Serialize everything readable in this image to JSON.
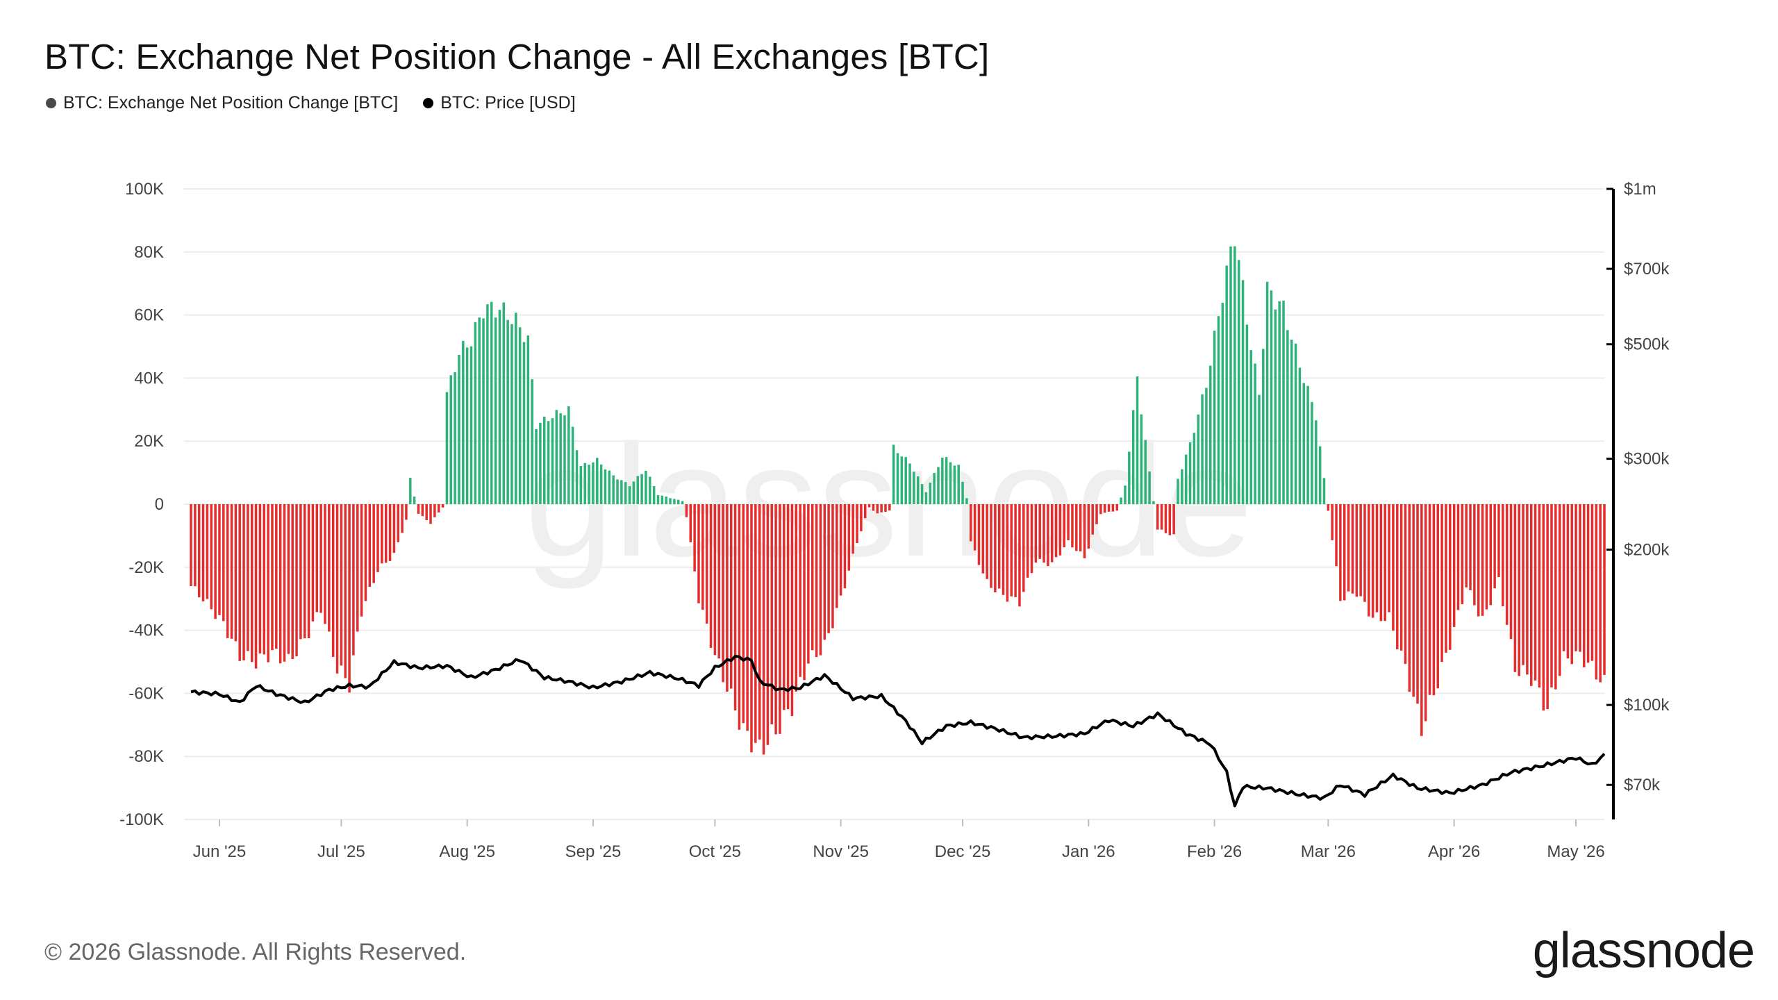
{
  "header": {
    "title": "BTC: Exchange Net Position Change - All Exchanges [BTC]"
  },
  "legend": [
    {
      "label": "BTC: Exchange Net Position Change [BTC]",
      "color": "#4a4a4a"
    },
    {
      "label": "BTC: Price [USD]",
      "color": "#000000"
    }
  ],
  "footer": {
    "copyright": "© 2026 Glassnode. All Rights Reserved.",
    "brand": "glassnode",
    "watermark": "glassnode"
  },
  "chart_data": {
    "type": "bar",
    "title": "BTC: Exchange Net Position Change - All Exchanges [BTC]",
    "colors": {
      "positive": "#2db37a",
      "negative": "#e52c2c",
      "price": "#000000",
      "grid": "#ececec"
    },
    "x_ticks": [
      "Jun '25",
      "Jul '25",
      "Aug '25",
      "Sep '25",
      "Oct '25",
      "Nov '25",
      "Dec '25",
      "Jan '26",
      "Feb '26",
      "Mar '26",
      "Apr '26",
      "May '26"
    ],
    "x_range": [
      "2025-05-25",
      "2026-05-08"
    ],
    "y_left": {
      "ylim": [
        -100000,
        100000
      ],
      "ticks": [
        100000,
        80000,
        60000,
        40000,
        20000,
        0,
        -20000,
        -40000,
        -60000,
        -80000,
        -100000
      ],
      "tick_labels": [
        "100K",
        "80K",
        "60K",
        "40K",
        "20K",
        "0",
        "-20K",
        "-40K",
        "-60K",
        "-80K",
        "-100K"
      ]
    },
    "y_right": {
      "scale": "log",
      "range": [
        60000,
        1000000
      ],
      "ticks": [
        1000000,
        700000,
        500000,
        300000,
        200000,
        100000,
        70000
      ],
      "tick_labels": [
        "$1m",
        "$700k",
        "$500k",
        "$300k",
        "$200k",
        "$100k",
        "$70k"
      ]
    },
    "series": [
      {
        "name": "BTC: Exchange Net Position Change [BTC]",
        "kind": "bar",
        "keyframes": [
          [
            "2025-05-25",
            -26000
          ],
          [
            "2025-05-28",
            -30000
          ],
          [
            "2025-06-02",
            -38000
          ],
          [
            "2025-06-06",
            -48000
          ],
          [
            "2025-06-10",
            -50000
          ],
          [
            "2025-06-14",
            -47000
          ],
          [
            "2025-06-18",
            -50000
          ],
          [
            "2025-06-22",
            -43000
          ],
          [
            "2025-06-26",
            -33000
          ],
          [
            "2025-06-30",
            -52000
          ],
          [
            "2025-07-03",
            -57000
          ],
          [
            "2025-07-06",
            -34000
          ],
          [
            "2025-07-10",
            -21000
          ],
          [
            "2025-07-14",
            -16000
          ],
          [
            "2025-07-17",
            -5000
          ],
          [
            "2025-07-18",
            8000
          ],
          [
            "2025-07-20",
            -3000
          ],
          [
            "2025-07-23",
            -6000
          ],
          [
            "2025-07-26",
            -1000
          ],
          [
            "2025-07-27",
            35000
          ],
          [
            "2025-07-30",
            48000
          ],
          [
            "2025-08-02",
            52000
          ],
          [
            "2025-08-05",
            62000
          ],
          [
            "2025-08-09",
            62000
          ],
          [
            "2025-08-13",
            58000
          ],
          [
            "2025-08-16",
            52000
          ],
          [
            "2025-08-18",
            25000
          ],
          [
            "2025-08-22",
            28000
          ],
          [
            "2025-08-26",
            30000
          ],
          [
            "2025-08-29",
            12000
          ],
          [
            "2025-09-02",
            14000
          ],
          [
            "2025-09-06",
            9000
          ],
          [
            "2025-09-10",
            6000
          ],
          [
            "2025-09-14",
            11000
          ],
          [
            "2025-09-17",
            3000
          ],
          [
            "2025-09-20",
            2000
          ],
          [
            "2025-09-23",
            1000
          ],
          [
            "2025-09-24",
            -4000
          ],
          [
            "2025-09-27",
            -30000
          ],
          [
            "2025-10-01",
            -48000
          ],
          [
            "2025-10-04",
            -58000
          ],
          [
            "2025-10-08",
            -72000
          ],
          [
            "2025-10-12",
            -78000
          ],
          [
            "2025-10-16",
            -72000
          ],
          [
            "2025-10-20",
            -64000
          ],
          [
            "2025-10-24",
            -50000
          ],
          [
            "2025-10-28",
            -45000
          ],
          [
            "2025-11-01",
            -30000
          ],
          [
            "2025-11-05",
            -12000
          ],
          [
            "2025-11-08",
            -1000
          ],
          [
            "2025-11-10",
            -3000
          ],
          [
            "2025-11-13",
            -2000
          ],
          [
            "2025-11-14",
            18000
          ],
          [
            "2025-11-18",
            13000
          ],
          [
            "2025-11-22",
            4000
          ],
          [
            "2025-11-26",
            15000
          ],
          [
            "2025-11-30",
            12000
          ],
          [
            "2025-12-02",
            2000
          ],
          [
            "2025-12-03",
            -12000
          ],
          [
            "2025-12-07",
            -25000
          ],
          [
            "2025-12-11",
            -29000
          ],
          [
            "2025-12-15",
            -31000
          ],
          [
            "2025-12-19",
            -18000
          ],
          [
            "2025-12-23",
            -19000
          ],
          [
            "2025-12-27",
            -12000
          ],
          [
            "2025-12-31",
            -17000
          ],
          [
            "2026-01-04",
            -3000
          ],
          [
            "2026-01-08",
            -2000
          ],
          [
            "2026-01-10",
            6000
          ],
          [
            "2026-01-13",
            40000
          ],
          [
            "2026-01-16",
            10000
          ],
          [
            "2026-01-18",
            -8000
          ],
          [
            "2026-01-22",
            -10000
          ],
          [
            "2026-01-23",
            8000
          ],
          [
            "2026-01-26",
            19000
          ],
          [
            "2026-01-30",
            38000
          ],
          [
            "2026-02-03",
            67000
          ],
          [
            "2026-02-06",
            86000
          ],
          [
            "2026-02-10",
            50000
          ],
          [
            "2026-02-12",
            35000
          ],
          [
            "2026-02-14",
            68000
          ],
          [
            "2026-02-18",
            62000
          ],
          [
            "2026-02-22",
            44000
          ],
          [
            "2026-02-26",
            28000
          ],
          [
            "2026-02-28",
            8000
          ],
          [
            "2026-03-01",
            -2000
          ],
          [
            "2026-03-04",
            -30000
          ],
          [
            "2026-03-08",
            -28000
          ],
          [
            "2026-03-12",
            -36000
          ],
          [
            "2026-03-16",
            -36000
          ],
          [
            "2026-03-20",
            -52000
          ],
          [
            "2026-03-24",
            -71000
          ],
          [
            "2026-03-27",
            -60000
          ],
          [
            "2026-03-31",
            -44000
          ],
          [
            "2026-04-04",
            -26000
          ],
          [
            "2026-04-08",
            -37000
          ],
          [
            "2026-04-12",
            -24000
          ],
          [
            "2026-04-16",
            -52000
          ],
          [
            "2026-04-20",
            -55000
          ],
          [
            "2026-04-24",
            -65000
          ],
          [
            "2026-04-28",
            -49000
          ],
          [
            "2026-05-02",
            -48000
          ],
          [
            "2026-05-05",
            -52000
          ],
          [
            "2026-05-08",
            -57000
          ]
        ]
      },
      {
        "name": "BTC: Price [USD]",
        "kind": "line",
        "keyframes": [
          [
            "2025-05-25",
            106000
          ],
          [
            "2025-06-01",
            105000
          ],
          [
            "2025-06-06",
            101000
          ],
          [
            "2025-06-10",
            109000
          ],
          [
            "2025-06-15",
            105000
          ],
          [
            "2025-06-22",
            101000
          ],
          [
            "2025-06-28",
            107000
          ],
          [
            "2025-07-03",
            109000
          ],
          [
            "2025-07-08",
            108500
          ],
          [
            "2025-07-14",
            121000
          ],
          [
            "2025-07-20",
            118000
          ],
          [
            "2025-07-27",
            119000
          ],
          [
            "2025-08-02",
            113000
          ],
          [
            "2025-08-08",
            117000
          ],
          [
            "2025-08-14",
            122500
          ],
          [
            "2025-08-20",
            113000
          ],
          [
            "2025-08-26",
            111000
          ],
          [
            "2025-09-01",
            108000
          ],
          [
            "2025-09-08",
            111000
          ],
          [
            "2025-09-15",
            115500
          ],
          [
            "2025-09-22",
            112500
          ],
          [
            "2025-09-27",
            109000
          ],
          [
            "2025-10-01",
            118000
          ],
          [
            "2025-10-06",
            124000
          ],
          [
            "2025-10-10",
            122000
          ],
          [
            "2025-10-12",
            111000
          ],
          [
            "2025-10-17",
            107000
          ],
          [
            "2025-10-22",
            108000
          ],
          [
            "2025-10-28",
            114000
          ],
          [
            "2025-11-04",
            103000
          ],
          [
            "2025-11-11",
            104000
          ],
          [
            "2025-11-17",
            93000
          ],
          [
            "2025-11-21",
            84500
          ],
          [
            "2025-11-27",
            91000
          ],
          [
            "2025-12-03",
            92500
          ],
          [
            "2025-12-09",
            90000
          ],
          [
            "2025-12-16",
            86500
          ],
          [
            "2025-12-24",
            87000
          ],
          [
            "2025-12-31",
            88000
          ],
          [
            "2026-01-06",
            93500
          ],
          [
            "2026-01-12",
            91000
          ],
          [
            "2026-01-18",
            96000
          ],
          [
            "2026-01-25",
            88000
          ],
          [
            "2026-01-31",
            84000
          ],
          [
            "2026-02-04",
            74000
          ],
          [
            "2026-02-06",
            63500
          ],
          [
            "2026-02-08",
            69500
          ],
          [
            "2026-02-14",
            69000
          ],
          [
            "2026-02-22",
            67000
          ],
          [
            "2026-02-28",
            66000
          ],
          [
            "2026-03-04",
            70000
          ],
          [
            "2026-03-10",
            67000
          ],
          [
            "2026-03-17",
            73000
          ],
          [
            "2026-03-23",
            69000
          ],
          [
            "2026-03-31",
            67500
          ],
          [
            "2026-04-08",
            70000
          ],
          [
            "2026-04-15",
            74000
          ],
          [
            "2026-04-22",
            76000
          ],
          [
            "2026-05-01",
            79000
          ],
          [
            "2026-05-05",
            76500
          ],
          [
            "2026-05-08",
            80000
          ]
        ]
      }
    ]
  }
}
